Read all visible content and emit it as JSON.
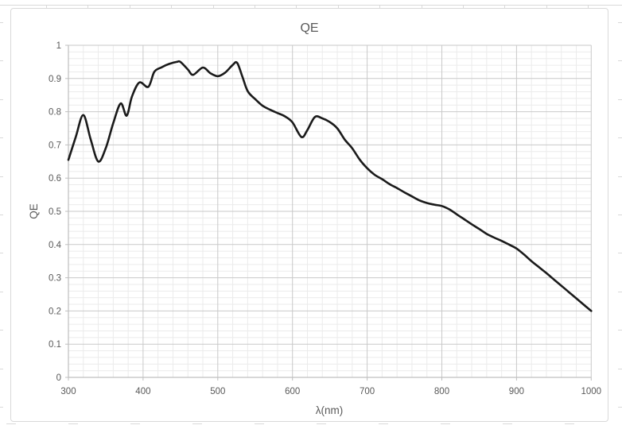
{
  "chart": {
    "title": "QE",
    "x_axis": {
      "title": "λ(nm)",
      "min": 300,
      "max": 1000,
      "major_step": 100,
      "minor_step": 20,
      "tick_labels": [
        "300",
        "400",
        "500",
        "600",
        "700",
        "800",
        "900",
        "1000"
      ]
    },
    "y_axis": {
      "title": "QE",
      "min": 0,
      "max": 1,
      "major_step": 0.1,
      "minor_step": 0.02,
      "tick_labels": [
        "0",
        "0.1",
        "0.2",
        "0.3",
        "0.4",
        "0.5",
        "0.6",
        "0.7",
        "0.8",
        "0.9",
        "1"
      ]
    },
    "colors": {
      "line": "#1a1a1a",
      "major_grid": "#c9c9c9",
      "minor_grid": "#ebebeb",
      "axis": "#bfbfbf",
      "text": "#595959",
      "frame_border": "#d9d9d9"
    }
  },
  "chart_data": {
    "type": "line",
    "title": "QE",
    "xlabel": "λ(nm)",
    "ylabel": "QE",
    "xlim": [
      300,
      1000
    ],
    "ylim": [
      0,
      1
    ],
    "grid": "major and minor gridlines on both axes",
    "legend": "none",
    "series": [
      {
        "name": "QE",
        "color": "#1a1a1a",
        "x": [
          300,
          310,
          320,
          330,
          340,
          350,
          360,
          370,
          378,
          385,
          395,
          407,
          415,
          425,
          435,
          445,
          450,
          460,
          467,
          480,
          490,
          500,
          510,
          520,
          526,
          533,
          540,
          550,
          560,
          570,
          580,
          590,
          600,
          612,
          620,
          630,
          640,
          650,
          660,
          670,
          680,
          690,
          700,
          710,
          720,
          730,
          740,
          750,
          760,
          770,
          780,
          790,
          800,
          810,
          820,
          830,
          840,
          850,
          860,
          870,
          880,
          890,
          900,
          910,
          920,
          930,
          940,
          950,
          960,
          970,
          980,
          990,
          1000
        ],
        "y": [
          0.655,
          0.725,
          0.79,
          0.715,
          0.65,
          0.69,
          0.765,
          0.825,
          0.788,
          0.845,
          0.888,
          0.875,
          0.92,
          0.934,
          0.944,
          0.95,
          0.95,
          0.927,
          0.911,
          0.933,
          0.916,
          0.907,
          0.918,
          0.941,
          0.947,
          0.905,
          0.862,
          0.838,
          0.818,
          0.806,
          0.796,
          0.786,
          0.768,
          0.724,
          0.745,
          0.784,
          0.78,
          0.769,
          0.75,
          0.716,
          0.69,
          0.656,
          0.63,
          0.61,
          0.597,
          0.582,
          0.57,
          0.557,
          0.545,
          0.533,
          0.525,
          0.52,
          0.516,
          0.506,
          0.491,
          0.476,
          0.461,
          0.447,
          0.432,
          0.421,
          0.411,
          0.4,
          0.388,
          0.37,
          0.35,
          0.332,
          0.314,
          0.295,
          0.276,
          0.257,
          0.238,
          0.219,
          0.2
        ]
      }
    ]
  }
}
